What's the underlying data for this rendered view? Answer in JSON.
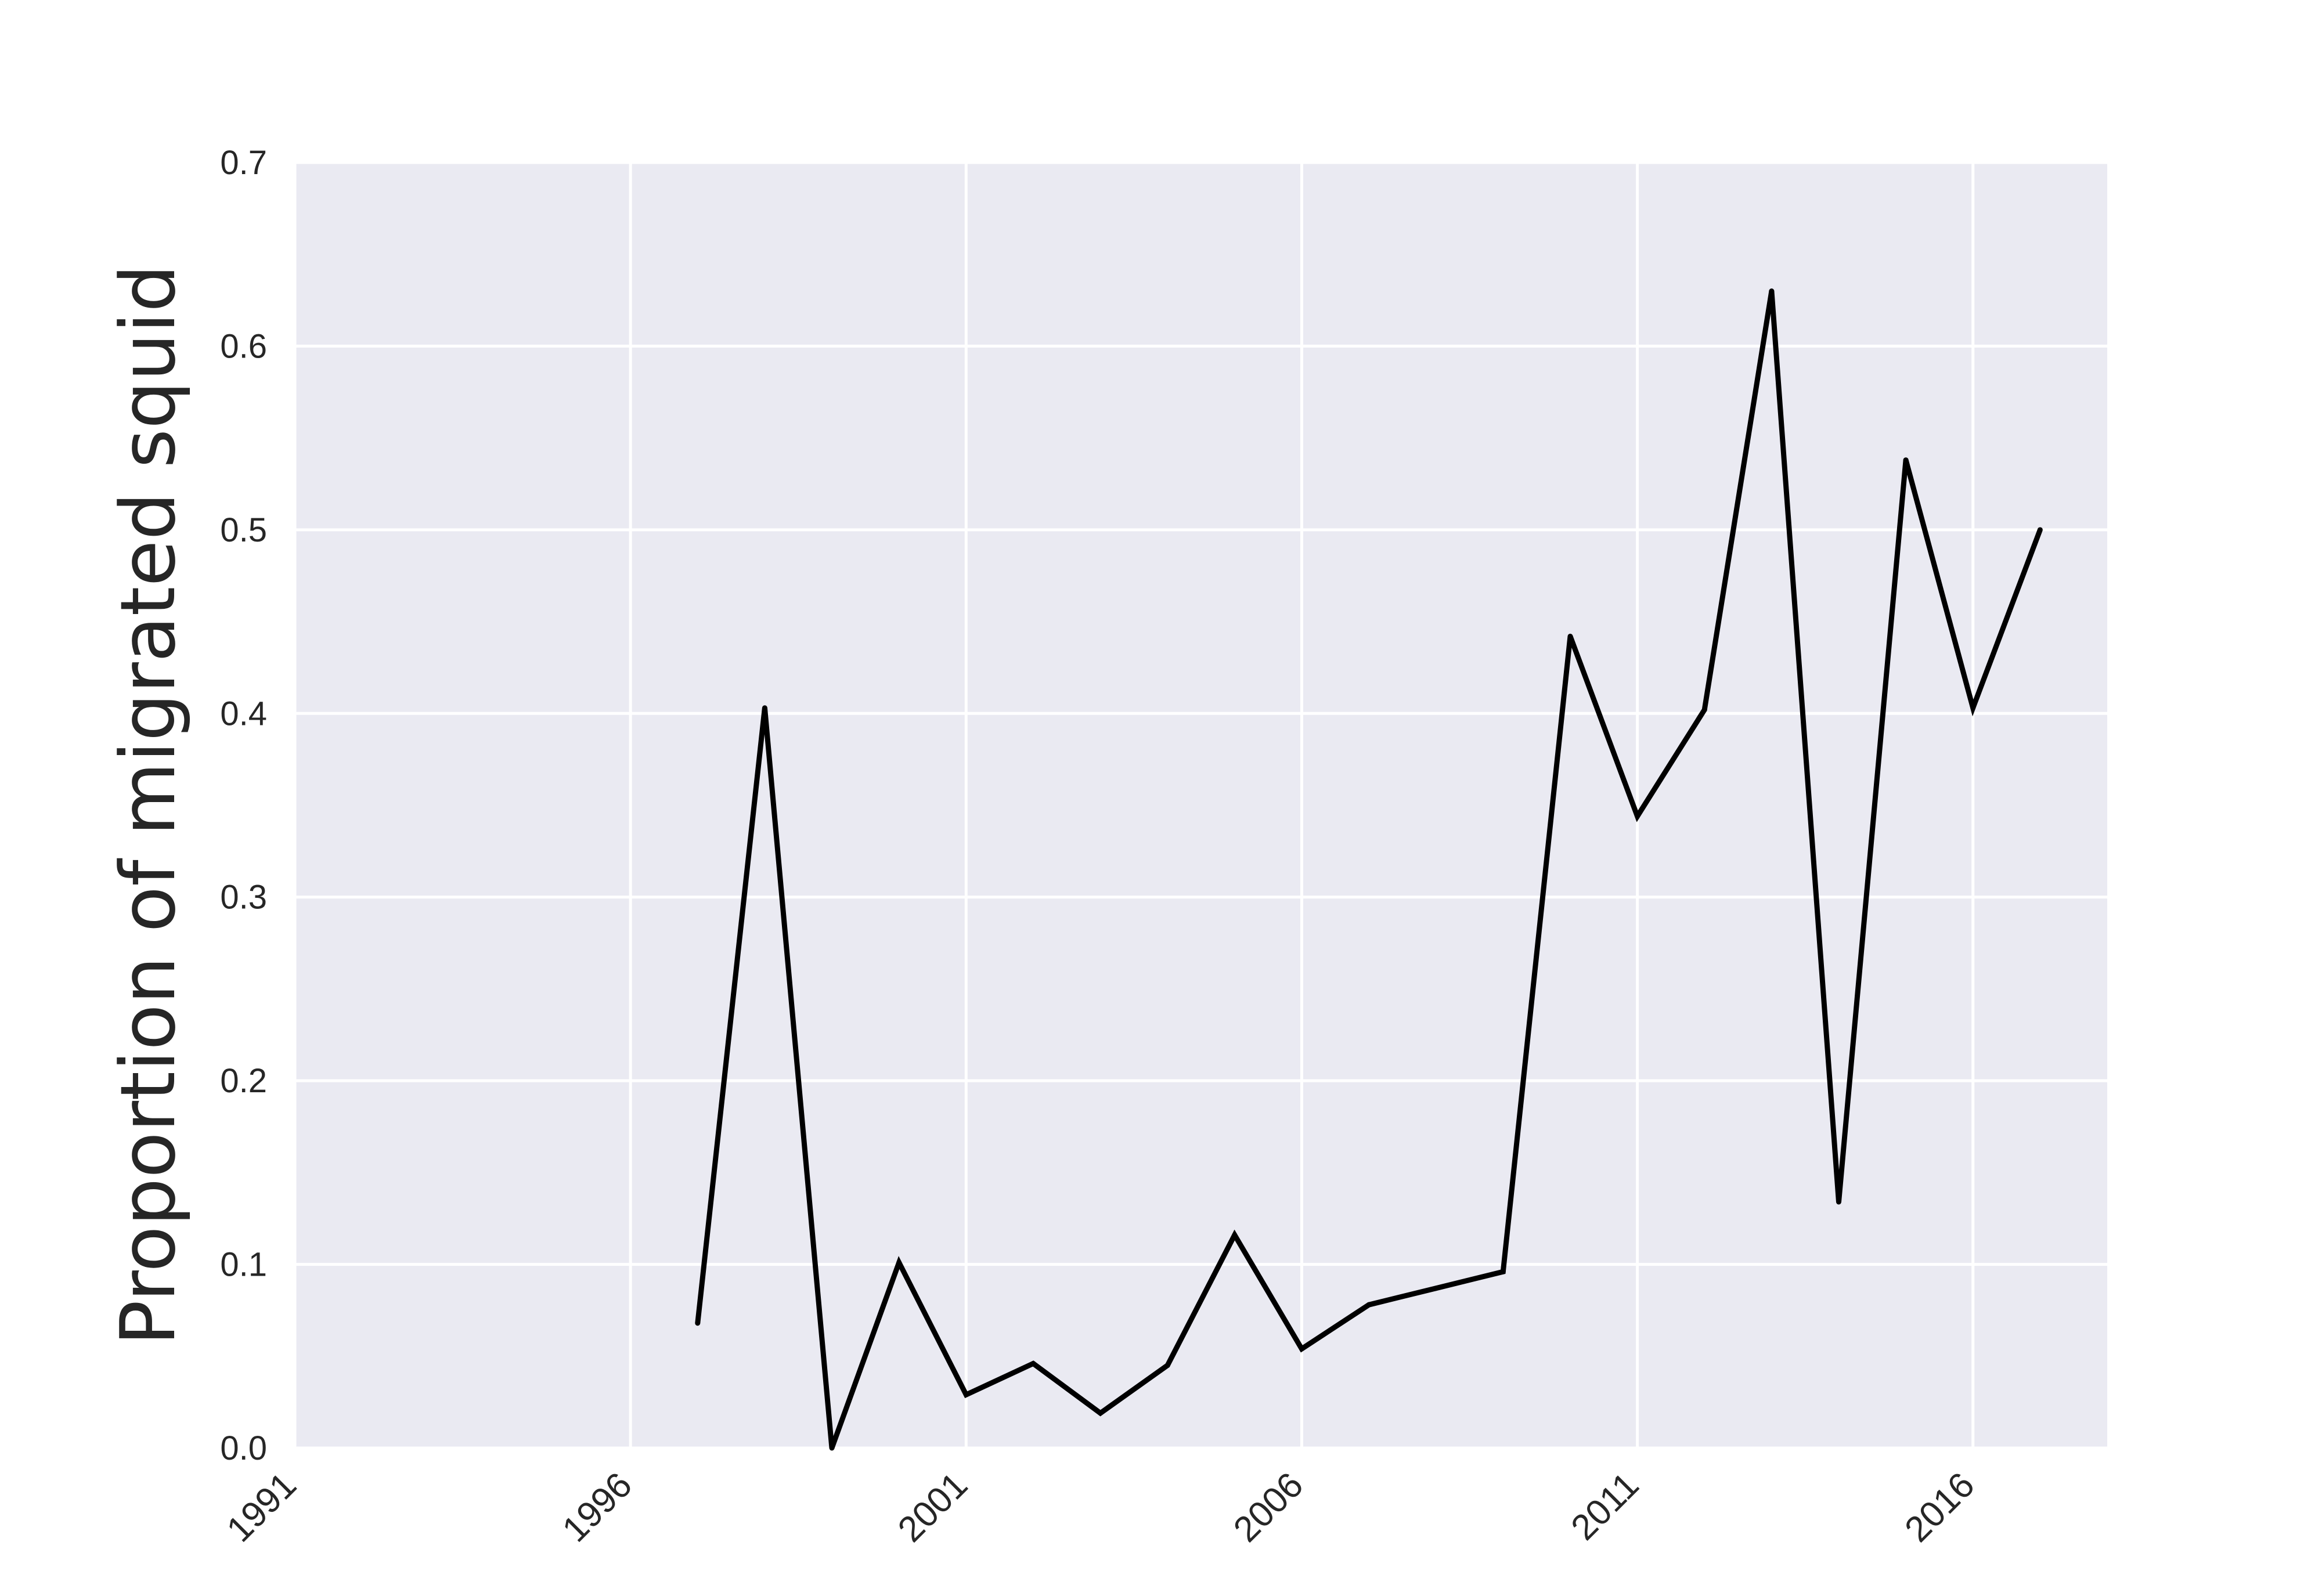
{
  "chart_data": {
    "type": "line",
    "title": "",
    "xlabel": "",
    "ylabel": "Proportion of migrated squid",
    "xlim": [
      1991,
      2018
    ],
    "ylim": [
      0.0,
      0.7
    ],
    "xticks": [
      1991,
      1996,
      2001,
      2006,
      2011,
      2016
    ],
    "yticks": [
      0.0,
      0.1,
      0.2,
      0.3,
      0.4,
      0.5,
      0.6,
      0.7
    ],
    "ytick_labels": [
      "0.0",
      "0.1",
      "0.2",
      "0.3",
      "0.4",
      "0.5",
      "0.6",
      "0.7"
    ],
    "grid": true,
    "colors": {
      "background": "#eaeaf2",
      "grid": "#ffffff",
      "line": "#000000",
      "text": "#262626"
    },
    "series": [
      {
        "x": [
          1997,
          1998,
          1999,
          2000,
          2001,
          2002,
          2003,
          2004,
          2005,
          2006,
          2007,
          2008,
          2009,
          2010,
          2011,
          2012,
          2013,
          2014,
          2015,
          2016,
          2017
        ],
        "values": [
          0.068,
          0.403,
          0.0,
          0.101,
          0.029,
          0.046,
          0.019,
          0.045,
          0.116,
          0.054,
          0.078,
          0.087,
          0.096,
          0.442,
          0.344,
          0.402,
          0.63,
          0.134,
          0.538,
          0.403,
          0.5
        ]
      }
    ]
  }
}
